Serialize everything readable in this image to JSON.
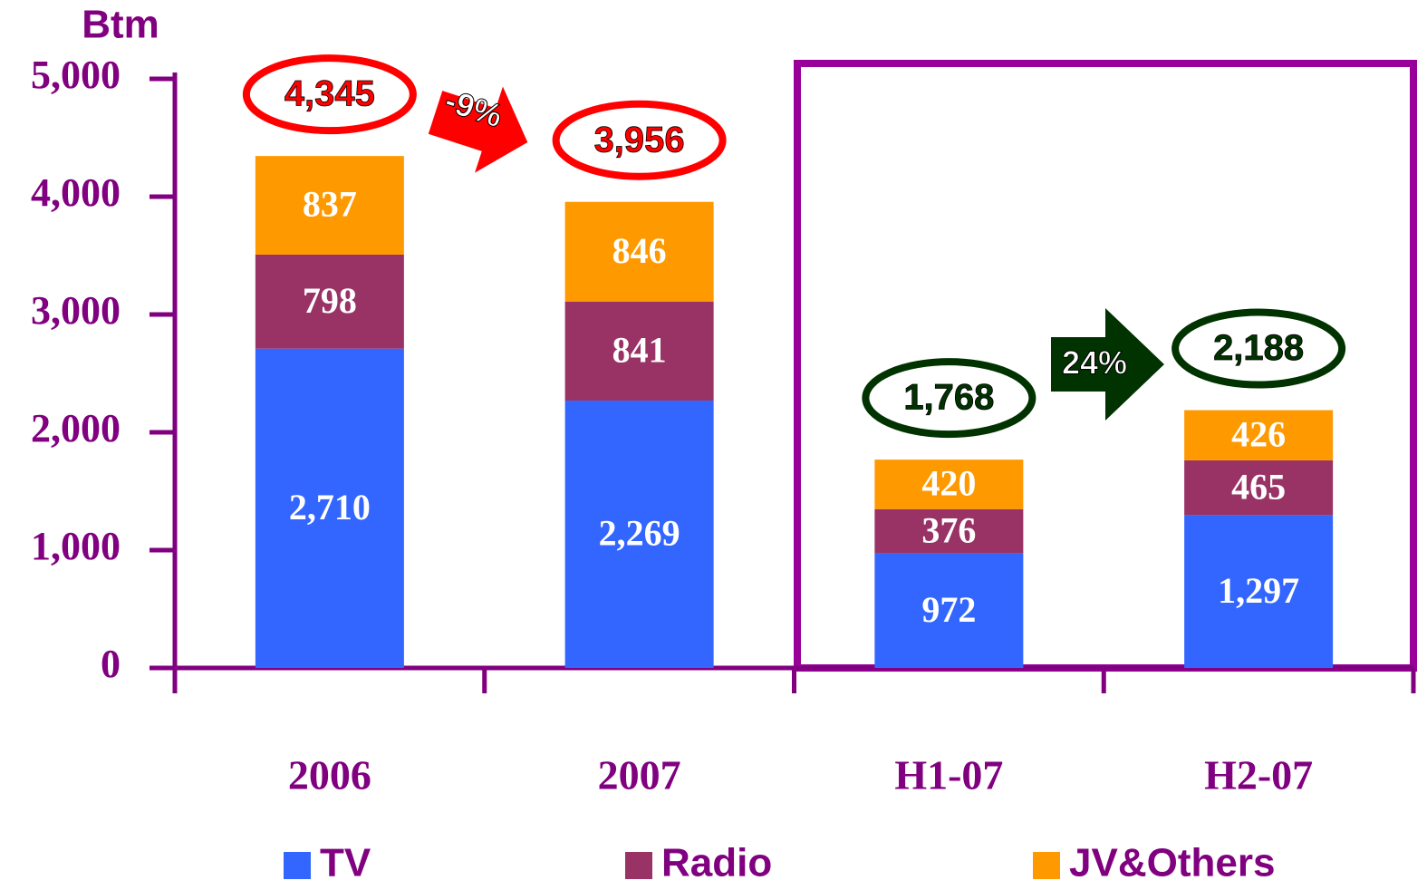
{
  "chart_data": {
    "type": "stacked-bar",
    "ylabel": "Btm",
    "categories": [
      "2006",
      "2007",
      "H1-07",
      "H2-07"
    ],
    "series": [
      {
        "name": "TV",
        "color": "#3366ff",
        "values": [
          2710,
          2269,
          972,
          1297
        ],
        "value_labels": [
          "2,710",
          "2,269",
          "972",
          "1,297"
        ]
      },
      {
        "name": "Radio",
        "color": "#993366",
        "values": [
          798,
          841,
          376,
          465
        ],
        "value_labels": [
          "798",
          "841",
          "376",
          "465"
        ]
      },
      {
        "name": "JV&Others",
        "color": "#ff9900",
        "values": [
          837,
          846,
          420,
          426
        ],
        "value_labels": [
          "837",
          "846",
          "420",
          "426"
        ]
      }
    ],
    "totals": [
      4345,
      3956,
      1768,
      2188
    ],
    "total_labels": [
      "4,345",
      "3,956",
      "1,768",
      "2,188"
    ],
    "total_colors": [
      "#ff0000",
      "#ff0000",
      "#003300",
      "#003300"
    ],
    "annotations": [
      "-9%",
      "24%"
    ],
    "ylim": [
      0,
      5000
    ],
    "yticks": [
      0,
      {
        "value": 1000,
        "label": "1,000"
      },
      {
        "value": 2000,
        "label": "2,000"
      },
      {
        "value": 3000,
        "label": "3,000"
      },
      {
        "value": 4000,
        "label": "4,000"
      },
      {
        "value": 5000,
        "label": "5,000"
      }
    ]
  }
}
